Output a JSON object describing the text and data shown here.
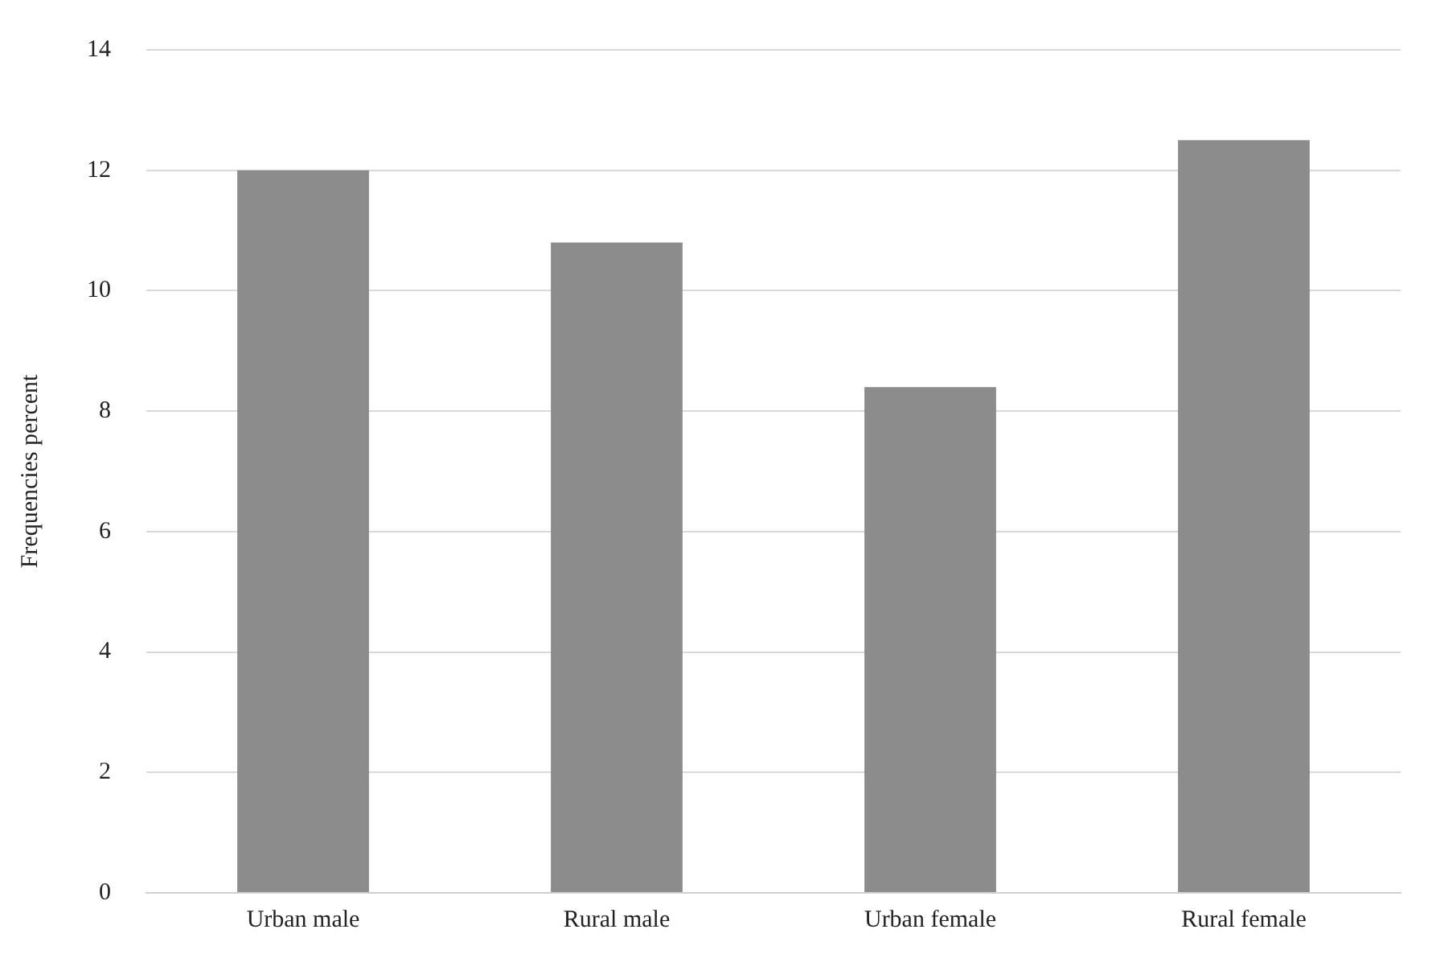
{
  "chart_data": {
    "type": "bar",
    "ylabel": "Frequencies percent",
    "categories": [
      "Urban male",
      "Rural male",
      "Urban female",
      "Rural female"
    ],
    "values": [
      12.0,
      10.8,
      8.4,
      12.5
    ],
    "color": "#8c8c8c",
    "ylim": [
      0,
      14
    ],
    "yticks": [
      0,
      2,
      4,
      6,
      8,
      10,
      12,
      14
    ],
    "grid": "y",
    "legend": false
  }
}
